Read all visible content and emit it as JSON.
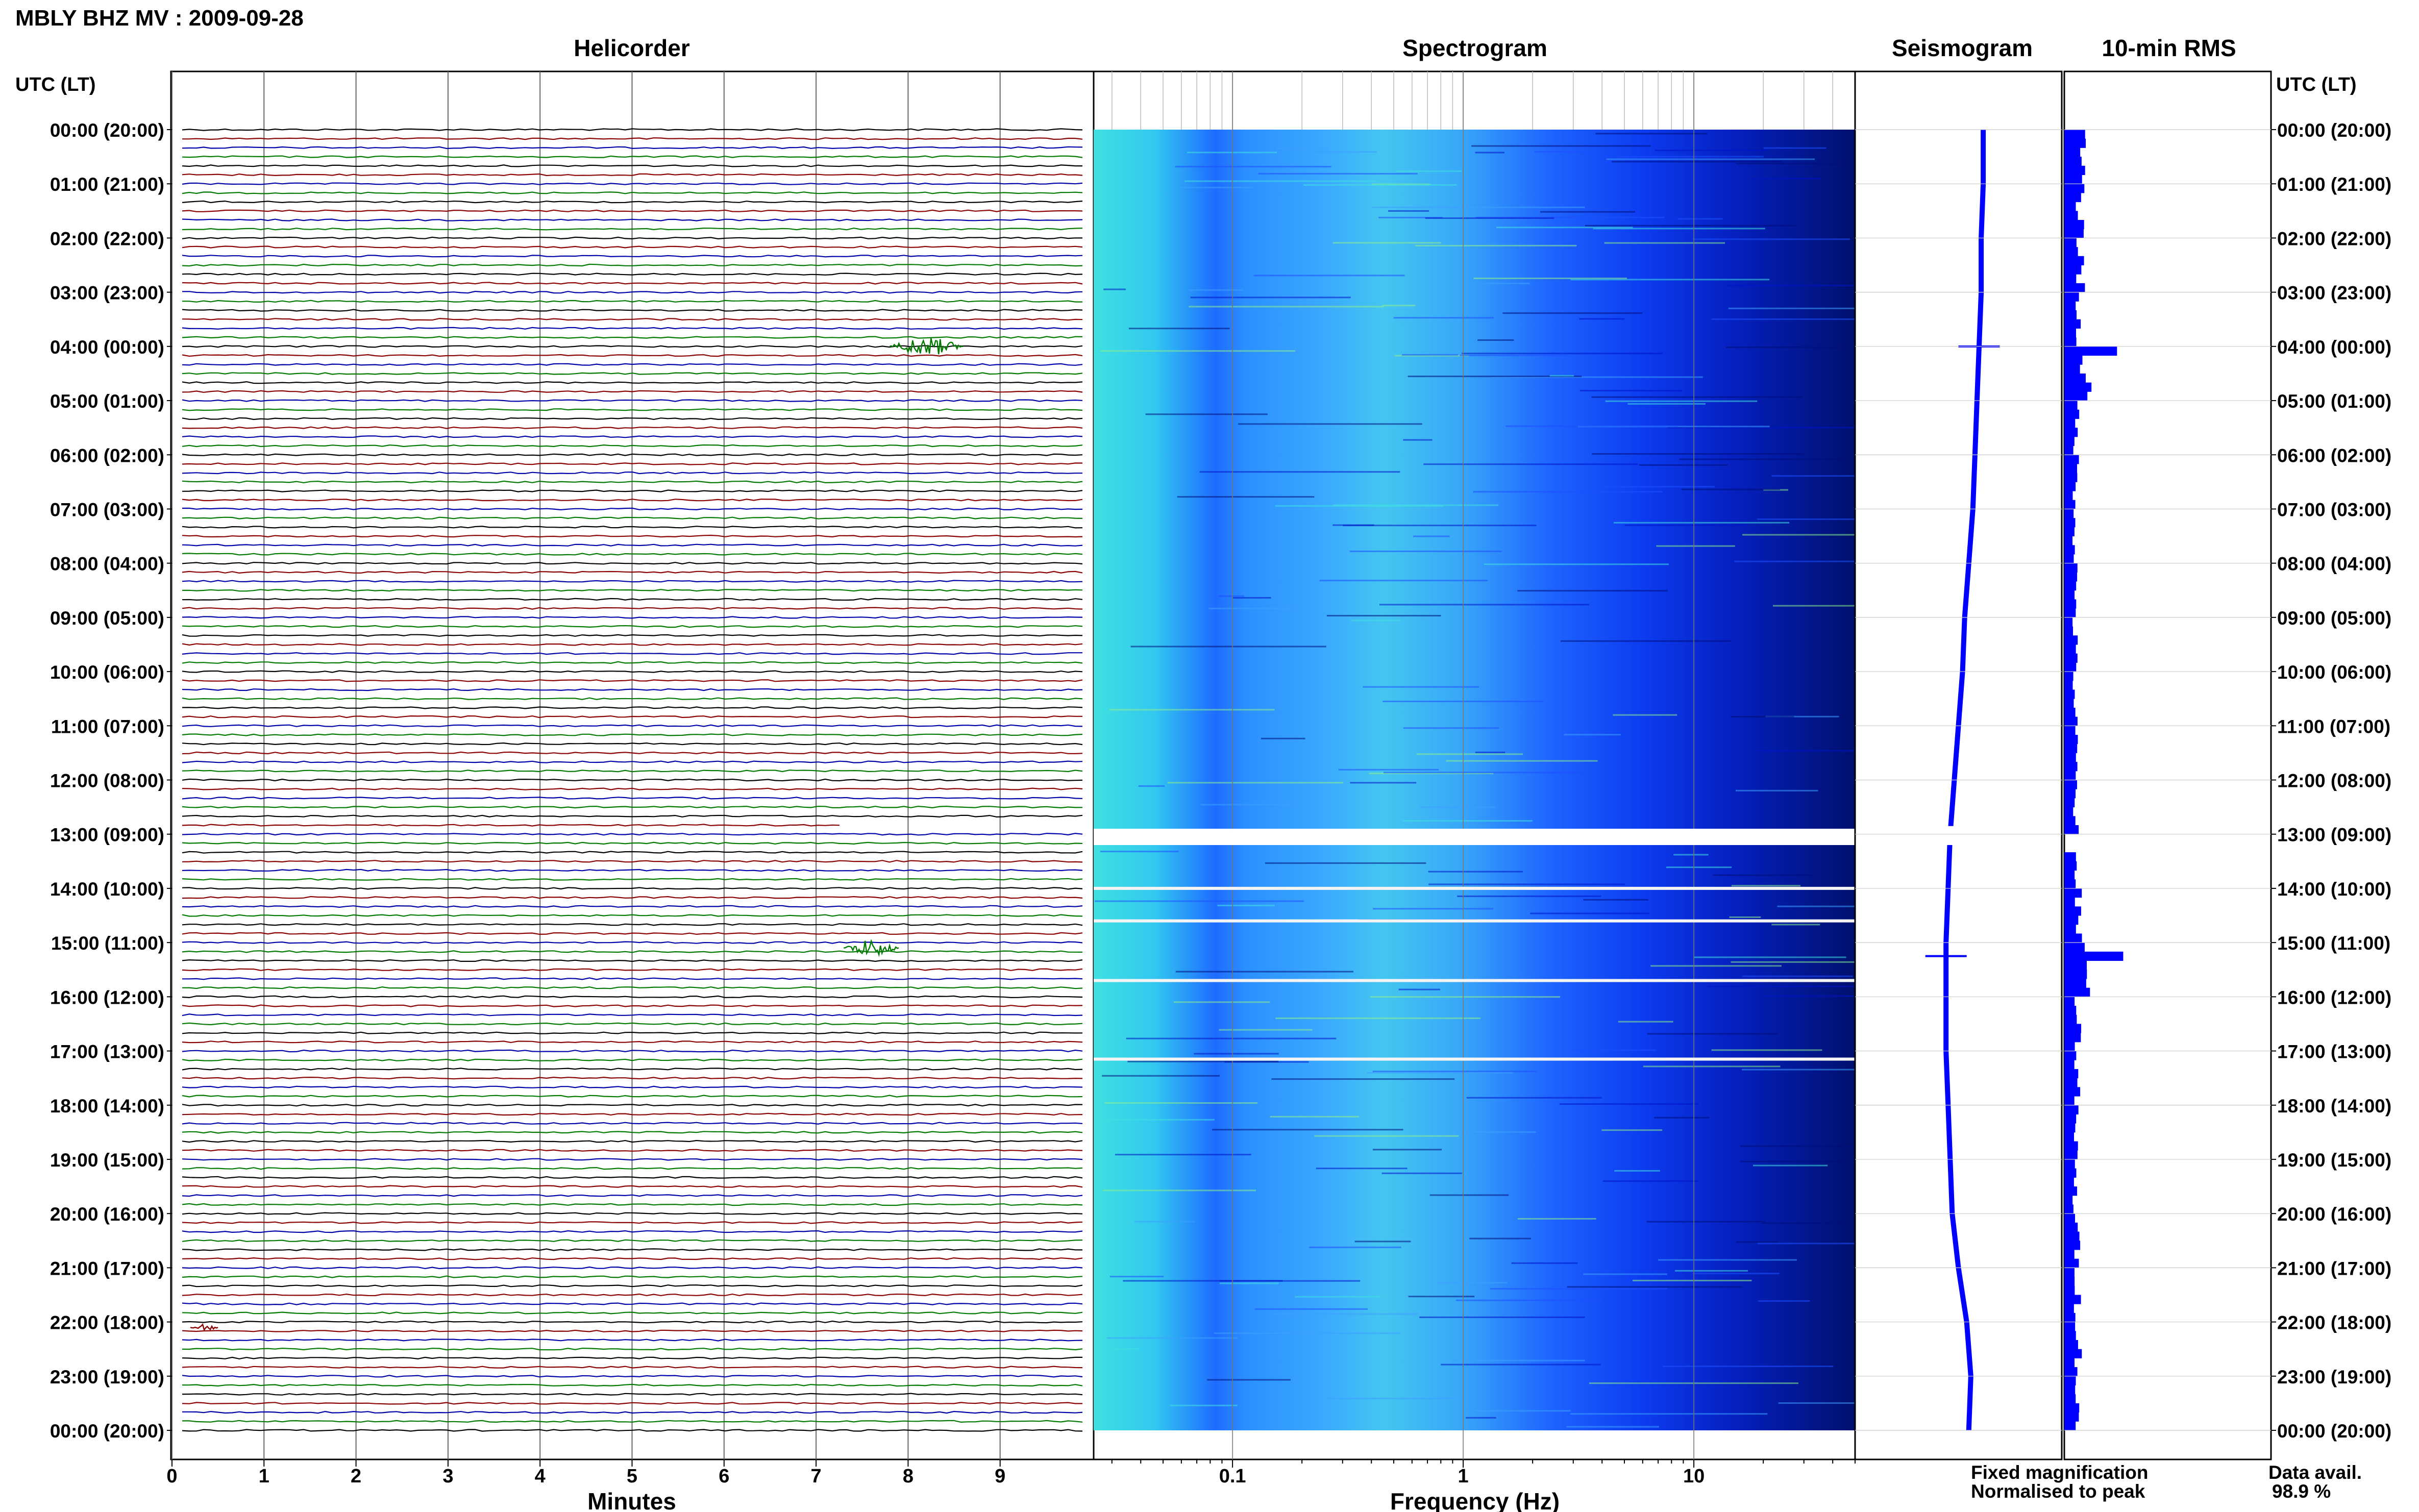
{
  "title": "MBLY BHZ MV : 2009-09-28",
  "panels": {
    "helicorder": "Helicorder",
    "spectrogram": "Spectrogram",
    "seismogram": "Seismogram",
    "rms": "10-min RMS"
  },
  "axis": {
    "time_header_left": "UTC (LT)",
    "time_header_right": "UTC (LT)",
    "minutes_label": "Minutes",
    "frequency_label": "Frequency (Hz)"
  },
  "legend": {
    "fixed": "Fixed magnification",
    "normalised": "Normalised to peak",
    "fixed_color": "#1010ff",
    "normalised_color": "#ff0000"
  },
  "availability": {
    "label": "Data avail.",
    "value": "98.9 %"
  },
  "colors": {
    "trace_cycle": [
      "#000000",
      "#8b0000",
      "#0000aa",
      "#007a00"
    ],
    "seismogram": "#0000ff",
    "rms": "#0000ff",
    "spectrogram_colormap": [
      "#000e7a",
      "#0014c8",
      "#1e50ff",
      "#3ca0ff",
      "#3fe0e0",
      "#8cf08c"
    ]
  },
  "chart_data": [
    {
      "type": "line",
      "name": "helicorder",
      "xlabel": "Minutes",
      "x_ticks": [
        0,
        1,
        2,
        3,
        4,
        5,
        6,
        7,
        8,
        9
      ],
      "xlim": [
        0,
        10
      ],
      "rows_per_hour": 6,
      "hours": 24,
      "time_ticks": [
        "00:00 (20:00)",
        "01:00 (21:00)",
        "02:00 (22:00)",
        "03:00 (23:00)",
        "04:00 (00:00)",
        "05:00 (01:00)",
        "06:00 (02:00)",
        "07:00 (03:00)",
        "08:00 (04:00)",
        "09:00 (05:00)",
        "10:00 (06:00)",
        "11:00 (07:00)",
        "12:00 (08:00)",
        "13:00 (09:00)",
        "14:00 (10:00)",
        "15:00 (11:00)",
        "16:00 (12:00)",
        "17:00 (13:00)",
        "18:00 (14:00)",
        "19:00 (15:00)",
        "20:00 (16:00)",
        "21:00 (17:00)",
        "22:00 (18:00)",
        "23:00 (19:00)",
        "00:00 (20:00)"
      ],
      "events": [
        {
          "hour": 4.0,
          "minute_start": 7.8,
          "minute_end": 8.6,
          "amplitude": 1.0
        },
        {
          "hour": 15.1,
          "minute_start": 7.3,
          "minute_end": 7.9,
          "amplitude": 0.9
        },
        {
          "hour": 22.1,
          "minute_start": 0.2,
          "minute_end": 0.5,
          "amplitude": 0.4
        }
      ],
      "gap": {
        "hour_start": 12.83,
        "hour_end": 13.0
      }
    },
    {
      "type": "heatmap",
      "name": "spectrogram",
      "xlabel": "Frequency (Hz)",
      "x_scale": "log",
      "xlim": [
        0.025,
        50
      ],
      "x_ticks": [
        0.1,
        1,
        10
      ],
      "x_tick_labels": [
        "0.1",
        "1",
        "10"
      ],
      "ylim_hours": [
        0,
        24
      ],
      "gap_hours": [
        12.9,
        13.2
      ],
      "white_lines_hours": [
        14.0,
        14.6,
        15.7,
        17.15
      ]
    },
    {
      "type": "line",
      "name": "seismogram",
      "ylim_hours": [
        0,
        24
      ],
      "offsets": [
        0.62,
        0.62,
        0.61,
        0.61,
        0.6,
        0.59,
        0.58,
        0.57,
        0.55,
        0.53,
        0.52,
        0.5,
        0.48,
        0.46,
        0.45,
        0.44,
        0.44,
        0.44,
        0.45,
        0.46,
        0.47,
        0.5,
        0.54,
        0.56,
        0.55
      ],
      "spikes": [
        {
          "hour": 4.0,
          "size": 0.2
        },
        {
          "hour": 15.25,
          "size": 0.2
        }
      ]
    },
    {
      "type": "bar",
      "name": "10-min RMS",
      "ylim_hours": [
        0,
        24
      ],
      "gap_hours": [
        12.9,
        13.2
      ],
      "hourly_rms": [
        0.28,
        0.25,
        0.27,
        0.22,
        0.34,
        0.2,
        0.19,
        0.18,
        0.18,
        0.17,
        0.17,
        0.18,
        0.18,
        0.17,
        0.24,
        0.34,
        0.23,
        0.2,
        0.18,
        0.17,
        0.2,
        0.22,
        0.23,
        0.2
      ],
      "spikes": [
        {
          "hour": 4.0,
          "value": 0.85
        },
        {
          "hour": 15.2,
          "value": 0.95
        }
      ]
    }
  ]
}
